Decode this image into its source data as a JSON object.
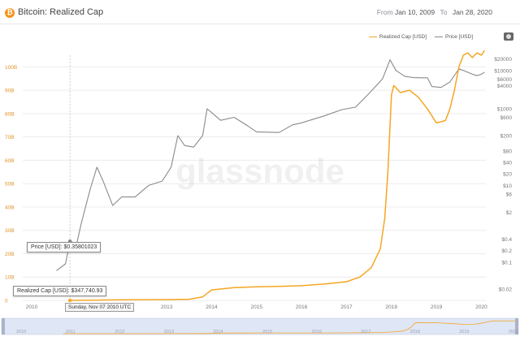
{
  "header": {
    "coin_icon": "bitcoin-icon",
    "coin_glyph": "₿",
    "title": "Bitcoin: Realized Cap",
    "from_label": "From",
    "from_value": "Jan 10, 2009",
    "to_label": "To",
    "to_value": "Jan 28, 2020"
  },
  "watermark": "glassnode",
  "tooltip": {
    "price": "Price [USD]: $0.35801023",
    "realized": "Realized Cap [USD]: $347,740.93",
    "date": "Sunday, Nov 07 2010 UTC"
  },
  "colors": {
    "realized": "#f5a623",
    "price": "#8a8a8a",
    "grid": "#ececec",
    "text": "#777777",
    "navigator_bg": "#dfe6f5"
  },
  "chart_data": {
    "type": "line",
    "legend": [
      "Realized Cap [USD]",
      "Price [USD]"
    ],
    "legend_position": "top-right",
    "x_ticks": [
      "2010",
      "2011",
      "2012",
      "2013",
      "2014",
      "2015",
      "2016",
      "2017",
      "2018",
      "2019",
      "2020"
    ],
    "x_range": [
      2009.8,
      2020.1
    ],
    "left_axis": {
      "label": "",
      "ticks": [
        "0",
        "10B",
        "20B",
        "30B",
        "40B",
        "50B",
        "60B",
        "70B",
        "80B",
        "90B",
        "100B"
      ],
      "tick_values": [
        0,
        10,
        20,
        30,
        40,
        50,
        60,
        70,
        80,
        90,
        100
      ],
      "range": [
        0,
        105
      ]
    },
    "right_axis": {
      "scale": "log",
      "ticks": [
        "$0.02",
        "$0.1",
        "$0.2",
        "$0.4",
        "$2",
        "$6",
        "$10",
        "$20",
        "$40",
        "$80",
        "$200",
        "$600",
        "$1000",
        "$4000",
        "$6000",
        "$10000",
        "$20000"
      ],
      "tick_values": [
        0.02,
        0.1,
        0.2,
        0.4,
        2,
        6,
        10,
        20,
        40,
        80,
        200,
        600,
        1000,
        4000,
        6000,
        10000,
        20000
      ],
      "range": [
        0.01,
        25000
      ]
    },
    "series": [
      {
        "name": "Realized Cap [USD]",
        "axis": "left",
        "points": [
          [
            2010.85,
            0.0003
          ],
          [
            2011.0,
            0.05
          ],
          [
            2011.5,
            0.15
          ],
          [
            2012.0,
            0.25
          ],
          [
            2012.5,
            0.3
          ],
          [
            2013.0,
            0.35
          ],
          [
            2013.5,
            0.5
          ],
          [
            2013.8,
            1.5
          ],
          [
            2014.0,
            4.5
          ],
          [
            2014.5,
            5.5
          ],
          [
            2015.0,
            5.8
          ],
          [
            2015.5,
            6.0
          ],
          [
            2016.0,
            6.3
          ],
          [
            2016.5,
            7.0
          ],
          [
            2017.0,
            8.0
          ],
          [
            2017.3,
            10.0
          ],
          [
            2017.55,
            14.0
          ],
          [
            2017.75,
            22.0
          ],
          [
            2017.85,
            35.0
          ],
          [
            2017.92,
            55.0
          ],
          [
            2018.0,
            88.0
          ],
          [
            2018.05,
            92.0
          ],
          [
            2018.2,
            89.0
          ],
          [
            2018.4,
            90.0
          ],
          [
            2018.6,
            87.0
          ],
          [
            2018.8,
            82.0
          ],
          [
            2019.0,
            76.0
          ],
          [
            2019.2,
            77.0
          ],
          [
            2019.3,
            82.0
          ],
          [
            2019.4,
            90.0
          ],
          [
            2019.5,
            100.0
          ],
          [
            2019.6,
            105.0
          ],
          [
            2019.7,
            106.0
          ],
          [
            2019.8,
            104.0
          ],
          [
            2019.9,
            106.0
          ],
          [
            2020.0,
            105.0
          ],
          [
            2020.07,
            107.0
          ]
        ]
      },
      {
        "name": "Price [USD]",
        "axis": "right",
        "points": [
          [
            2010.55,
            0.06
          ],
          [
            2010.75,
            0.09
          ],
          [
            2010.85,
            0.35
          ],
          [
            2011.0,
            0.3
          ],
          [
            2011.1,
            1.0
          ],
          [
            2011.3,
            8.0
          ],
          [
            2011.45,
            30.0
          ],
          [
            2011.6,
            12.0
          ],
          [
            2011.8,
            3.0
          ],
          [
            2012.0,
            5.0
          ],
          [
            2012.3,
            5.0
          ],
          [
            2012.6,
            10.0
          ],
          [
            2012.9,
            13.0
          ],
          [
            2013.1,
            30.0
          ],
          [
            2013.25,
            200.0
          ],
          [
            2013.4,
            110.0
          ],
          [
            2013.6,
            100.0
          ],
          [
            2013.8,
            200.0
          ],
          [
            2013.9,
            1000.0
          ],
          [
            2014.0,
            800.0
          ],
          [
            2014.2,
            500.0
          ],
          [
            2014.5,
            600.0
          ],
          [
            2014.8,
            360.0
          ],
          [
            2015.0,
            250.0
          ],
          [
            2015.5,
            240.0
          ],
          [
            2015.8,
            380.0
          ],
          [
            2016.0,
            430.0
          ],
          [
            2016.5,
            650.0
          ],
          [
            2016.9,
            950.0
          ],
          [
            2017.2,
            1100.0
          ],
          [
            2017.5,
            2500.0
          ],
          [
            2017.8,
            6000.0
          ],
          [
            2017.97,
            19000.0
          ],
          [
            2018.1,
            10000.0
          ],
          [
            2018.3,
            7000.0
          ],
          [
            2018.5,
            6500.0
          ],
          [
            2018.8,
            6400.0
          ],
          [
            2018.9,
            3800.0
          ],
          [
            2019.1,
            3600.0
          ],
          [
            2019.3,
            5000.0
          ],
          [
            2019.5,
            11000.0
          ],
          [
            2019.6,
            10000.0
          ],
          [
            2019.8,
            8000.0
          ],
          [
            2019.9,
            7300.0
          ],
          [
            2020.0,
            8000.0
          ],
          [
            2020.07,
            9000.0
          ]
        ]
      }
    ]
  },
  "navigator": {
    "x_ticks": [
      "2010",
      "2011",
      "2012",
      "2013",
      "2014",
      "2015",
      "2016",
      "2017",
      "2018",
      "2019",
      "2020"
    ]
  }
}
